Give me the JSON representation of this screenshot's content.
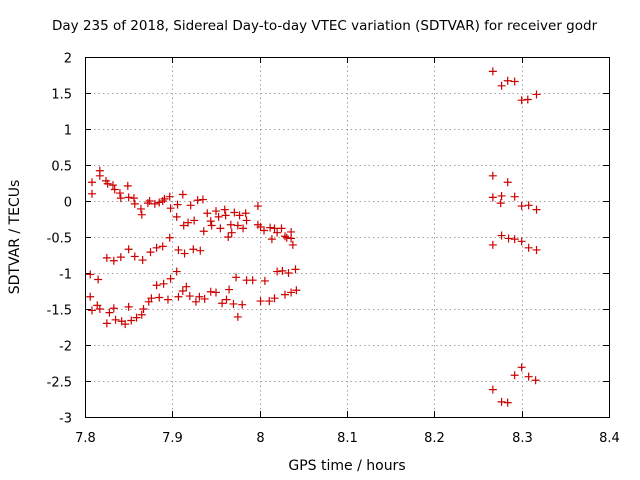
{
  "chart_data": {
    "type": "scatter",
    "title": "Day 235 of 2018, Sidereal Day-to-day VTEC variation (SDTVAR) for receiver godr",
    "xlabel": "GPS time / hours",
    "ylabel": "SDTVAR / TECUs",
    "xlim": [
      7.8,
      8.4
    ],
    "ylim": [
      -3,
      2
    ],
    "xticks": [
      7.8,
      7.9,
      8.0,
      8.1,
      8.2,
      8.3,
      8.4
    ],
    "xtick_labels": [
      "7.8",
      "7.9",
      "8",
      "8.1",
      "8.2",
      "8.3",
      "8.4"
    ],
    "yticks": [
      -3,
      -2.5,
      -2,
      -1.5,
      -1,
      -0.5,
      0,
      0.5,
      1,
      1.5,
      2
    ],
    "ytick_labels": [
      "-3",
      "-2.5",
      "-2",
      "-1.5",
      "-1",
      "-0.5",
      "0",
      "0.5",
      "1",
      "1.5",
      "2"
    ],
    "grid": true,
    "marker": "+",
    "color": "#cc0000",
    "series": [
      {
        "name": "SDTVAR",
        "points": [
          [
            7.808,
            0.26
          ],
          [
            7.808,
            0.1
          ],
          [
            7.817,
            0.42
          ],
          [
            7.817,
            0.35
          ],
          [
            7.824,
            0.28
          ],
          [
            7.826,
            0.24
          ],
          [
            7.832,
            0.22
          ],
          [
            7.834,
            0.16
          ],
          [
            7.84,
            0.11
          ],
          [
            7.841,
            0.04
          ],
          [
            7.849,
            0.21
          ],
          [
            7.85,
            0.05
          ],
          [
            7.856,
            0.04
          ],
          [
            7.857,
            -0.04
          ],
          [
            7.864,
            -0.11
          ],
          [
            7.865,
            -0.19
          ],
          [
            7.872,
            -0.03
          ],
          [
            7.874,
            0.0
          ],
          [
            7.88,
            -0.04
          ],
          [
            7.885,
            -0.02
          ],
          [
            7.889,
            0.0
          ],
          [
            7.891,
            0.03
          ],
          [
            7.897,
            0.06
          ],
          [
            7.898,
            -0.1
          ],
          [
            7.905,
            -0.22
          ],
          [
            7.906,
            -0.05
          ],
          [
            7.912,
            0.09
          ],
          [
            7.913,
            -0.34
          ],
          [
            7.918,
            -0.3
          ],
          [
            7.921,
            -0.06
          ],
          [
            7.925,
            -0.27
          ],
          [
            7.929,
            0.01
          ],
          [
            7.935,
            0.02
          ],
          [
            7.936,
            -0.42
          ],
          [
            7.94,
            -0.17
          ],
          [
            7.944,
            -0.28
          ],
          [
            7.945,
            -0.34
          ],
          [
            7.95,
            -0.14
          ],
          [
            7.953,
            -0.22
          ],
          [
            7.955,
            -0.38
          ],
          [
            7.96,
            -0.12
          ],
          [
            7.961,
            -0.2
          ],
          [
            7.964,
            -0.5
          ],
          [
            7.967,
            -0.33
          ],
          [
            7.968,
            -0.44
          ],
          [
            7.971,
            -0.16
          ],
          [
            7.975,
            -0.34
          ],
          [
            7.977,
            -0.2
          ],
          [
            7.981,
            -0.38
          ],
          [
            7.984,
            -0.17
          ],
          [
            7.985,
            -0.27
          ],
          [
            7.998,
            -0.07
          ],
          [
            7.998,
            -0.33
          ],
          [
            8.001,
            -0.36
          ],
          [
            8.005,
            -0.41
          ],
          [
            8.012,
            -0.37
          ],
          [
            8.014,
            -0.53
          ],
          [
            8.017,
            -0.38
          ],
          [
            8.02,
            -0.44
          ],
          [
            8.025,
            -0.38
          ],
          [
            8.029,
            -0.49
          ],
          [
            8.031,
            -0.51
          ],
          [
            8.036,
            -0.43
          ],
          [
            8.036,
            -0.52
          ],
          [
            8.038,
            -0.61
          ],
          [
            7.806,
            -1.02
          ],
          [
            7.815,
            -1.09
          ],
          [
            7.825,
            -0.79
          ],
          [
            7.833,
            -0.83
          ],
          [
            7.841,
            -0.78
          ],
          [
            7.85,
            -0.67
          ],
          [
            7.857,
            -0.77
          ],
          [
            7.866,
            -0.82
          ],
          [
            7.875,
            -0.71
          ],
          [
            7.882,
            -0.65
          ],
          [
            7.889,
            -0.63
          ],
          [
            7.897,
            -0.51
          ],
          [
            7.907,
            -0.68
          ],
          [
            7.914,
            -0.73
          ],
          [
            7.924,
            -0.67
          ],
          [
            7.932,
            -0.69
          ],
          [
            7.806,
            -1.33
          ],
          [
            7.808,
            -1.52
          ],
          [
            7.814,
            -1.45
          ],
          [
            7.817,
            -1.5
          ],
          [
            7.825,
            -1.7
          ],
          [
            7.828,
            -1.55
          ],
          [
            7.833,
            -1.49
          ],
          [
            7.835,
            -1.65
          ],
          [
            7.842,
            -1.67
          ],
          [
            7.846,
            -1.71
          ],
          [
            7.85,
            -1.47
          ],
          [
            7.853,
            -1.66
          ],
          [
            7.859,
            -1.62
          ],
          [
            7.865,
            -1.58
          ],
          [
            7.867,
            -1.5
          ],
          [
            7.873,
            -1.4
          ],
          [
            7.876,
            -1.35
          ],
          [
            7.882,
            -1.17
          ],
          [
            7.885,
            -1.34
          ],
          [
            7.89,
            -1.15
          ],
          [
            7.895,
            -1.37
          ],
          [
            7.898,
            -1.08
          ],
          [
            7.905,
            -0.98
          ],
          [
            7.907,
            -1.33
          ],
          [
            7.912,
            -1.25
          ],
          [
            7.916,
            -1.19
          ],
          [
            7.92,
            -1.32
          ],
          [
            7.927,
            -1.4
          ],
          [
            7.931,
            -1.33
          ],
          [
            7.937,
            -1.36
          ],
          [
            7.944,
            -1.26
          ],
          [
            7.95,
            -1.27
          ],
          [
            7.957,
            -1.42
          ],
          [
            7.962,
            -1.37
          ],
          [
            7.965,
            -1.23
          ],
          [
            7.97,
            -1.43
          ],
          [
            7.973,
            -1.06
          ],
          [
            7.975,
            -1.61
          ],
          [
            7.98,
            -1.44
          ],
          [
            7.985,
            -1.1
          ],
          [
            7.992,
            -1.1
          ],
          [
            8.001,
            -1.39
          ],
          [
            8.006,
            -1.11
          ],
          [
            8.011,
            -1.39
          ],
          [
            8.017,
            -1.35
          ],
          [
            8.02,
            -0.98
          ],
          [
            8.026,
            -0.97
          ],
          [
            8.029,
            -1.3
          ],
          [
            8.033,
            -1.0
          ],
          [
            8.036,
            -1.27
          ],
          [
            8.041,
            -0.95
          ],
          [
            8.042,
            -1.24
          ],
          [
            8.267,
            1.8
          ],
          [
            8.277,
            1.6
          ],
          [
            8.284,
            1.67
          ],
          [
            8.292,
            1.66
          ],
          [
            8.3,
            1.4
          ],
          [
            8.307,
            1.41
          ],
          [
            8.317,
            1.48
          ],
          [
            8.267,
            0.35
          ],
          [
            8.267,
            0.05
          ],
          [
            8.276,
            -0.03
          ],
          [
            8.277,
            0.07
          ],
          [
            8.284,
            0.26
          ],
          [
            8.292,
            0.06
          ],
          [
            8.3,
            -0.07
          ],
          [
            8.308,
            -0.06
          ],
          [
            8.317,
            -0.12
          ],
          [
            8.267,
            -0.61
          ],
          [
            8.277,
            -0.48
          ],
          [
            8.285,
            -0.52
          ],
          [
            8.292,
            -0.53
          ],
          [
            8.3,
            -0.56
          ],
          [
            8.308,
            -0.65
          ],
          [
            8.317,
            -0.68
          ],
          [
            8.267,
            -2.62
          ],
          [
            8.277,
            -2.79
          ],
          [
            8.284,
            -2.8
          ],
          [
            8.292,
            -2.42
          ],
          [
            8.3,
            -2.31
          ],
          [
            8.308,
            -2.44
          ],
          [
            8.316,
            -2.49
          ]
        ]
      }
    ]
  }
}
